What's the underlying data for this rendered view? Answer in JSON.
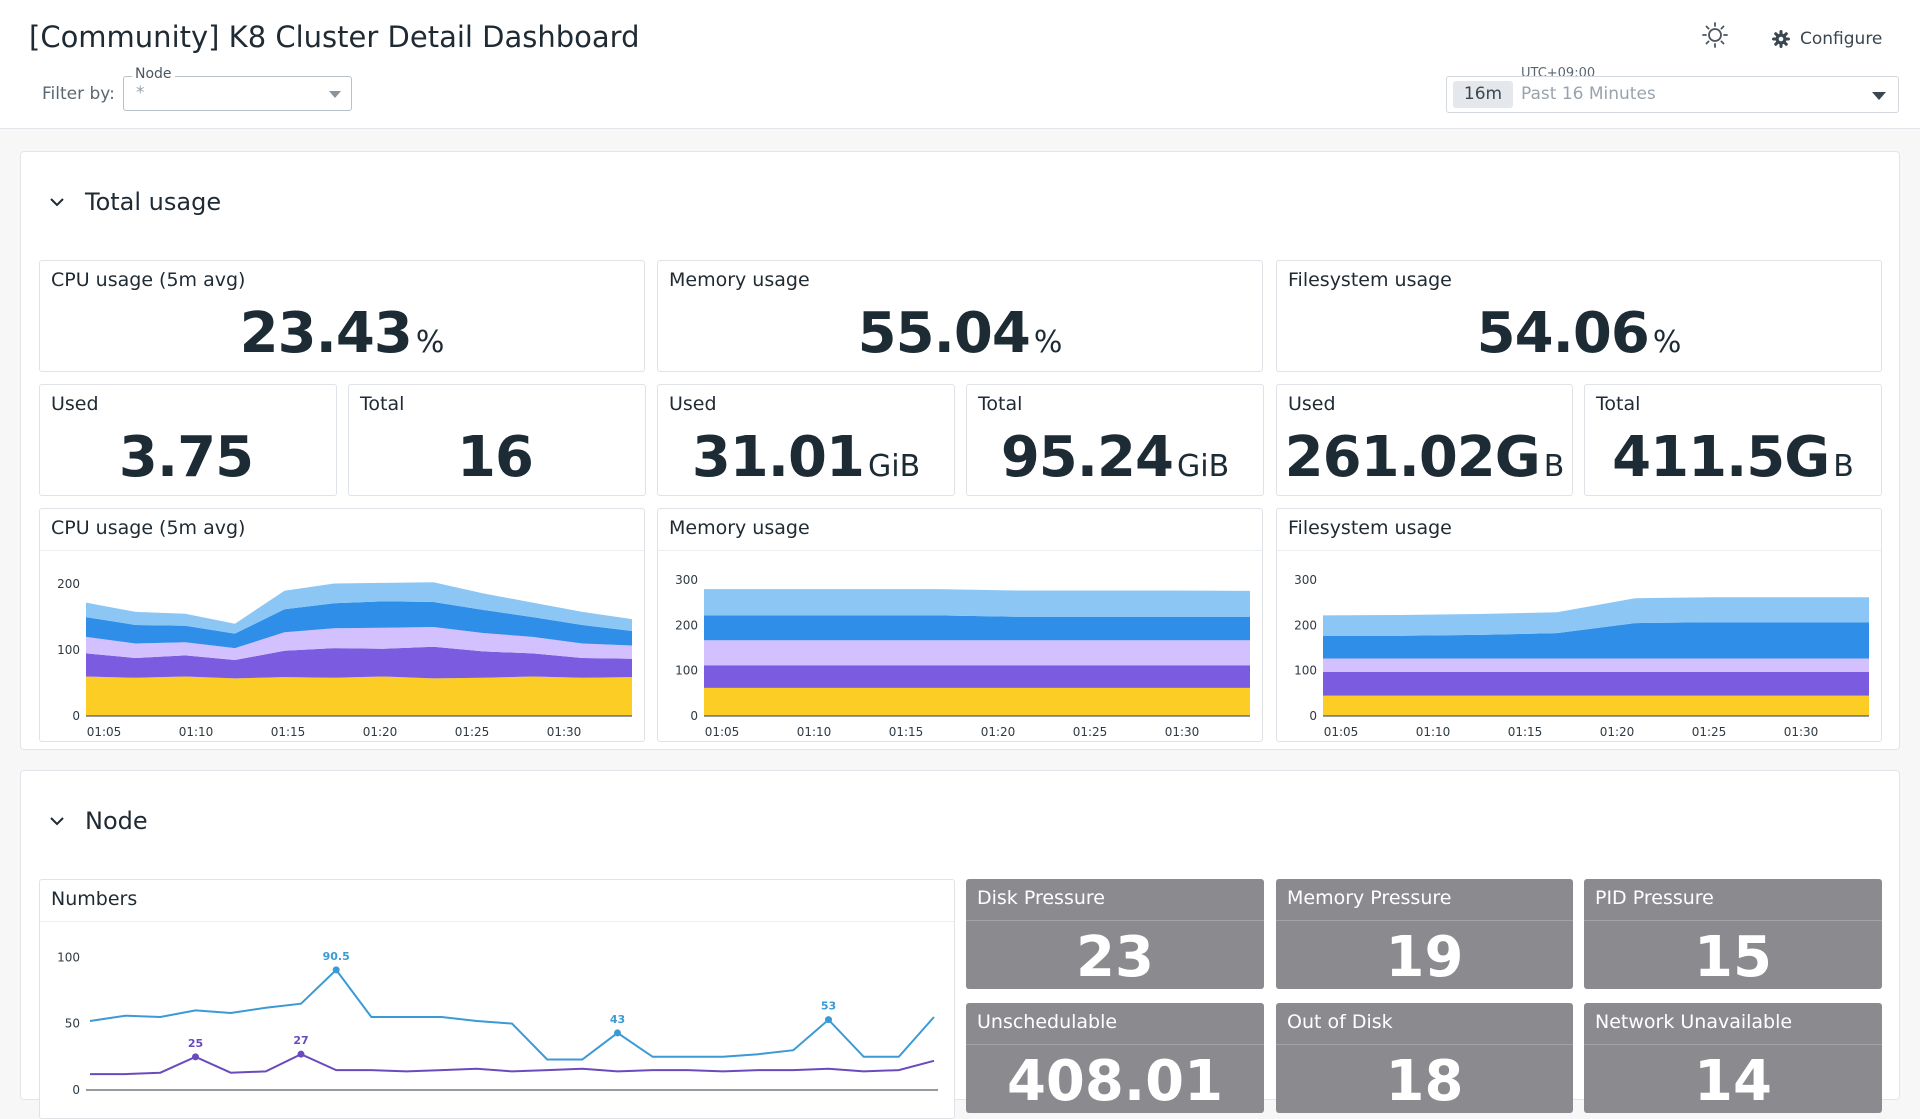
{
  "header": {
    "title": "[Community] K8 Cluster Detail Dashboard",
    "filter_label": "Filter by:",
    "node_legend": "Node",
    "node_value": "*",
    "configure_label": "Configure",
    "timezone": "UTC+09:00",
    "time_chip": "16m",
    "time_label": "Past 16 Minutes"
  },
  "groups": {
    "total_usage": {
      "title": "Total usage"
    },
    "node": {
      "title": "Node"
    }
  },
  "total_usage": {
    "cpu_pct": {
      "title": "CPU usage (5m avg)",
      "value": "23.43",
      "unit": "%"
    },
    "mem_pct": {
      "title": "Memory usage",
      "value": "55.04",
      "unit": "%"
    },
    "fs_pct": {
      "title": "Filesystem usage",
      "value": "54.06",
      "unit": "%"
    },
    "cpu_used": {
      "title": "Used",
      "value": "3.75",
      "unit": ""
    },
    "cpu_total": {
      "title": "Total",
      "value": "16",
      "unit": ""
    },
    "mem_used": {
      "title": "Used",
      "value": "31.01",
      "unit": "GiB"
    },
    "mem_total": {
      "title": "Total",
      "value": "95.24",
      "unit": "GiB"
    },
    "fs_used": {
      "title": "Used",
      "value": "261.02G",
      "unit": "B"
    },
    "fs_total": {
      "title": "Total",
      "value": "411.5G",
      "unit": "B"
    }
  },
  "node_status": {
    "disk_pressure": {
      "title": "Disk Pressure",
      "value": "23"
    },
    "memory_pressure": {
      "title": "Memory Pressure",
      "value": "19"
    },
    "pid_pressure": {
      "title": "PID Pressure",
      "value": "15"
    },
    "unschedulable": {
      "title": "Unschedulable",
      "value": "408.01"
    },
    "out_of_disk": {
      "title": "Out of Disk",
      "value": "18"
    },
    "network_unavailable": {
      "title": "Network Unavailable",
      "value": "14"
    }
  },
  "colors": {
    "yellow": "#fccd25",
    "purple": "#7b5be0",
    "lavender": "#d3c1ff",
    "blue": "#2e8ee8",
    "lightblue": "#8cc6f5",
    "line_blue": "#3b9ad6",
    "line_purple": "#6a4bbd"
  },
  "chart_data": [
    {
      "id": "cpu",
      "type": "area",
      "stacked": true,
      "title": "CPU usage (5m avg)",
      "x_ticks": [
        "01:05",
        "01:10",
        "01:15",
        "01:20",
        "01:25",
        "01:30"
      ],
      "ylim": [
        0,
        220
      ],
      "y_ticks": [
        0,
        100,
        200
      ],
      "series": [
        {
          "color": "yellow",
          "values": [
            60,
            58,
            60,
            57,
            59,
            58,
            60,
            57,
            58,
            60,
            58,
            59
          ]
        },
        {
          "color": "purple",
          "values": [
            35,
            30,
            32,
            28,
            40,
            45,
            42,
            48,
            40,
            35,
            30,
            28
          ]
        },
        {
          "color": "lavender",
          "values": [
            25,
            22,
            20,
            18,
            28,
            30,
            32,
            30,
            28,
            25,
            22,
            20
          ]
        },
        {
          "color": "blue",
          "values": [
            30,
            28,
            25,
            22,
            35,
            38,
            40,
            38,
            35,
            30,
            28,
            22
          ]
        },
        {
          "color": "lightblue",
          "values": [
            22,
            20,
            18,
            15,
            28,
            30,
            28,
            30,
            25,
            22,
            20,
            18
          ]
        }
      ]
    },
    {
      "id": "mem",
      "type": "area",
      "stacked": true,
      "title": "Memory usage",
      "x_ticks": [
        "01:05",
        "01:10",
        "01:15",
        "01:20",
        "01:25",
        "01:30"
      ],
      "ylim": [
        0,
        320
      ],
      "y_ticks": [
        0,
        100,
        200,
        300
      ],
      "series": [
        {
          "color": "yellow",
          "values": [
            62,
            62,
            62,
            62,
            62,
            62,
            62,
            62
          ]
        },
        {
          "color": "purple",
          "values": [
            50,
            50,
            50,
            50,
            50,
            50,
            50,
            50
          ]
        },
        {
          "color": "lavender",
          "values": [
            55,
            55,
            55,
            55,
            55,
            55,
            55,
            55
          ]
        },
        {
          "color": "blue",
          "values": [
            55,
            55,
            55,
            55,
            52,
            52,
            52,
            52
          ]
        },
        {
          "color": "lightblue",
          "values": [
            58,
            58,
            58,
            58,
            58,
            58,
            58,
            57
          ]
        }
      ]
    },
    {
      "id": "fs",
      "type": "area",
      "stacked": true,
      "title": "Filesystem usage",
      "x_ticks": [
        "01:05",
        "01:10",
        "01:15",
        "01:20",
        "01:25",
        "01:30"
      ],
      "ylim": [
        0,
        320
      ],
      "y_ticks": [
        0,
        100,
        200,
        300
      ],
      "series": [
        {
          "color": "yellow",
          "values": [
            45,
            45,
            45,
            45,
            45,
            45,
            45,
            45
          ]
        },
        {
          "color": "purple",
          "values": [
            52,
            52,
            52,
            52,
            52,
            52,
            52,
            52
          ]
        },
        {
          "color": "lavender",
          "values": [
            30,
            30,
            30,
            30,
            30,
            30,
            30,
            30
          ]
        },
        {
          "color": "blue",
          "values": [
            50,
            50,
            52,
            56,
            78,
            80,
            80,
            80
          ]
        },
        {
          "color": "lightblue",
          "values": [
            45,
            46,
            46,
            46,
            55,
            55,
            55,
            55
          ]
        }
      ]
    },
    {
      "id": "numbers",
      "type": "line",
      "title": "Numbers",
      "ylim": [
        0,
        110
      ],
      "y_ticks": [
        0,
        50,
        100
      ],
      "series": [
        {
          "color": "line_blue",
          "values": [
            52,
            56,
            55,
            60,
            58,
            62,
            65,
            90.5,
            55,
            55,
            55,
            52,
            50,
            23,
            23,
            43,
            25,
            25,
            25,
            27,
            30,
            53,
            25,
            25,
            55
          ]
        },
        {
          "color": "line_purple",
          "values": [
            12,
            12,
            13,
            25,
            13,
            14,
            27,
            15,
            15,
            14,
            15,
            16,
            14,
            15,
            16,
            14,
            15,
            15,
            14,
            15,
            15,
            16,
            14,
            15,
            22
          ]
        }
      ],
      "annotations": [
        {
          "series": 0,
          "index": 7,
          "label": "90.5"
        },
        {
          "series": 0,
          "index": 15,
          "label": "43"
        },
        {
          "series": 0,
          "index": 21,
          "label": "53"
        },
        {
          "series": 1,
          "index": 3,
          "label": "25"
        },
        {
          "series": 1,
          "index": 6,
          "label": "27"
        }
      ]
    }
  ]
}
